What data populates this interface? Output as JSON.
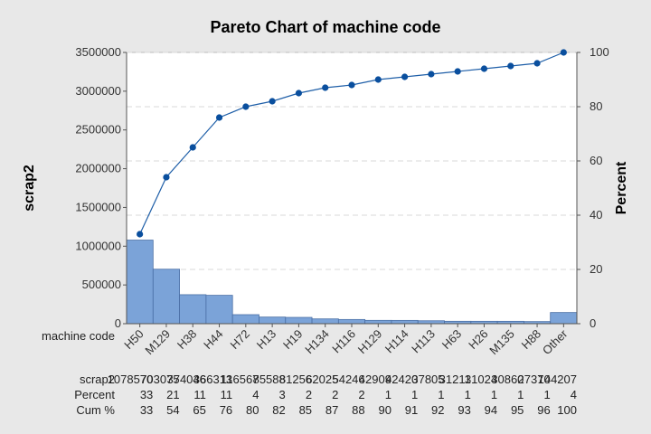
{
  "chart_data": {
    "type": "pareto",
    "title": "Pareto Chart of machine code",
    "ylabel": "scrap2",
    "y2label": "Percent",
    "xlabel": "machine code",
    "categories": [
      "H50",
      "M129",
      "H38",
      "H44",
      "H72",
      "H13",
      "H19",
      "H134",
      "H116",
      "H129",
      "H114",
      "H113",
      "H63",
      "H26",
      "M135",
      "H88",
      "Other"
    ],
    "values": [
      1078570,
      703075,
      374046,
      366313,
      116567,
      85588,
      81256,
      62025,
      54246,
      42909,
      42420,
      37805,
      31211,
      31024,
      30860,
      27370,
      144207
    ],
    "scrap2_labels": [
      "1078570",
      "703075",
      "374046",
      "366313",
      "116567",
      "85588",
      "81256",
      "62025",
      "54246",
      "42909",
      "42420",
      "37805",
      "31211",
      "31024",
      "30860",
      "27370",
      "144207"
    ],
    "percent": [
      "33",
      "21",
      "11",
      "11",
      "4",
      "3",
      "2",
      "2",
      "2",
      "1",
      "1",
      "1",
      "1",
      "1",
      "1",
      "1",
      "4"
    ],
    "cum_percent": [
      33,
      54,
      65,
      76,
      80,
      82,
      85,
      87,
      88,
      90,
      91,
      92,
      93,
      94,
      95,
      96,
      100
    ],
    "ylim": [
      0,
      3500000
    ],
    "y_ticks": [
      "0",
      "500000",
      "1000000",
      "1500000",
      "2000000",
      "2500000",
      "3000000",
      "3500000"
    ],
    "y2lim": [
      0,
      100
    ],
    "y2_ticks": [
      "0",
      "20",
      "40",
      "60",
      "80",
      "100"
    ],
    "table_row_labels": [
      "scrap2",
      "Percent",
      "Cum %"
    ],
    "grid": true,
    "colors": {
      "background": "#e8e8e8",
      "plot_bg": "#ffffff",
      "bar_fill": "#7ba3d8",
      "bar_stroke": "#4a6fa5",
      "line": "#1f5fa8",
      "marker": "#0a4f9e",
      "grid": "#d8d8d8"
    }
  }
}
